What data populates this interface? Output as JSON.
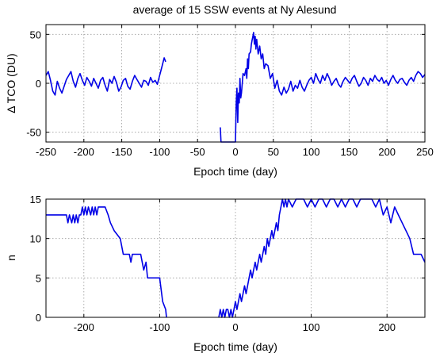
{
  "chart_data": [
    {
      "type": "line",
      "title": "average of 15 SSW events at Ny Alesund",
      "xlabel": "Epoch time (day)",
      "ylabel": "Δ TCO (DU)",
      "xlim": [
        -250,
        250
      ],
      "ylim": [
        -60,
        60
      ],
      "xticks": [
        "-250",
        "-200",
        "-150",
        "-100",
        "-50",
        "0",
        "50",
        "100",
        "150",
        "200",
        "250"
      ],
      "yticks": [
        "50",
        "0",
        "-50"
      ],
      "grid": true,
      "color": "#0000e6",
      "series": [
        {
          "segments": [
            {
              "x": [
                -250,
                -247,
                -244,
                -241,
                -238,
                -235,
                -232,
                -229,
                -226,
                -223,
                -220,
                -217,
                -214,
                -211,
                -208,
                -205,
                -202,
                -199,
                -196,
                -193,
                -190,
                -187,
                -184,
                -181,
                -178,
                -175,
                -172,
                -169,
                -166,
                -163,
                -160,
                -157,
                -154,
                -151,
                -148,
                -145,
                -142,
                -139,
                -136,
                -133,
                -130,
                -127,
                -124,
                -121,
                -118,
                -115,
                -112,
                -109,
                -106,
                -103,
                -100,
                -97,
                -94,
                -92
              ],
              "y": [
                8,
                12,
                3,
                -8,
                -12,
                2,
                -5,
                -10,
                -3,
                4,
                8,
                12,
                2,
                -4,
                5,
                10,
                3,
                -2,
                6,
                2,
                -3,
                5,
                0,
                -5,
                3,
                6,
                -2,
                -8,
                4,
                0,
                7,
                1,
                -8,
                -4,
                3,
                5,
                -3,
                -6,
                2,
                8,
                4,
                0,
                -4,
                3,
                2,
                -2,
                6,
                1,
                3,
                -1,
                8,
                17,
                26,
                22
              ]
            },
            {
              "x": [
                -20,
                -19,
                -18,
                -15,
                -12,
                -10,
                -8,
                -6,
                -4,
                -2,
                0,
                1,
                2,
                3,
                4,
                5,
                6,
                7,
                8,
                10,
                12,
                14,
                15,
                16,
                17,
                18,
                20,
                21,
                22,
                23,
                24,
                25,
                26,
                27,
                28,
                30,
                32,
                34,
                36,
                38,
                40,
                43,
                46,
                49,
                52,
                55,
                58,
                61,
                64,
                67,
                70,
                73,
                76,
                79,
                82,
                85,
                88,
                91,
                94,
                97,
                100,
                103,
                106,
                109,
                112,
                115,
                118,
                121,
                124,
                127,
                130,
                133,
                136,
                139,
                142,
                145,
                148,
                151,
                154,
                157,
                160,
                163,
                166,
                169,
                172,
                175,
                178,
                181,
                184,
                187,
                190,
                193,
                196,
                199,
                202,
                205,
                208,
                211,
                214,
                217,
                220,
                223,
                226,
                229,
                232,
                235,
                238,
                241,
                244,
                247,
                250
              ],
              "y": [
                -45,
                -60,
                -60,
                -60,
                -60,
                -60,
                -60,
                -60,
                -60,
                -60,
                -60,
                -20,
                -5,
                -40,
                -10,
                -20,
                5,
                -15,
                -10,
                10,
                8,
                15,
                5,
                25,
                15,
                30,
                32,
                40,
                44,
                48,
                52,
                40,
                48,
                35,
                45,
                30,
                38,
                25,
                30,
                15,
                20,
                18,
                5,
                10,
                -5,
                3,
                -8,
                -12,
                -4,
                -10,
                -6,
                2,
                -8,
                -2,
                -5,
                3,
                -4,
                -8,
                -2,
                3,
                6,
                0,
                10,
                4,
                0,
                8,
                3,
                10,
                5,
                -2,
                2,
                5,
                -1,
                -4,
                2,
                6,
                3,
                0,
                5,
                8,
                2,
                -3,
                0,
                6,
                3,
                -2,
                5,
                2,
                8,
                4,
                2,
                6,
                0,
                3,
                -2,
                4,
                8,
                3,
                0,
                4,
                5,
                1,
                -2,
                3,
                6,
                2,
                8,
                12,
                10,
                6,
                9
              ]
            }
          ]
        }
      ]
    },
    {
      "type": "line",
      "xlabel": "Epoch time (day)",
      "ylabel": "n",
      "xlim": [
        -250,
        250
      ],
      "ylim": [
        0,
        15
      ],
      "xticks": [
        "-200",
        "-100",
        "0",
        "100",
        "200"
      ],
      "yticks": [
        "15",
        "10",
        "5",
        "0"
      ],
      "grid": true,
      "color": "#0000e6",
      "series": [
        {
          "segments": [
            {
              "x": [
                -250,
                -223,
                -221,
                -219,
                -216,
                -214,
                -212,
                -210,
                -208,
                -206,
                -204,
                -202,
                -200,
                -198,
                -196,
                -194,
                -191,
                -189,
                -187,
                -185,
                -183,
                -181,
                -180,
                -172,
                -168,
                -165,
                -160,
                -152,
                -150,
                -148,
                -140,
                -138,
                -136,
                -134,
                -125,
                -123,
                -121,
                -118,
                -116,
                -108,
                -100,
                -96,
                -92,
                -91
              ],
              "y": [
                13,
                13,
                12,
                13,
                12,
                13,
                12,
                13,
                12,
                13,
                13,
                14,
                13,
                14,
                13,
                14,
                13,
                14,
                13,
                14,
                13,
                14,
                14,
                14,
                13,
                12,
                11,
                10,
                9,
                8,
                8,
                7,
                8,
                8,
                8,
                7,
                6,
                7,
                5,
                5,
                5,
                2,
                1,
                0
              ]
            },
            {
              "x": [
                -22,
                -20,
                -18,
                -16,
                -14,
                -12,
                -10,
                -8,
                -6,
                -4,
                -2,
                0,
                2,
                4,
                6,
                8,
                10,
                12,
                14,
                16,
                18,
                20,
                22,
                24,
                26,
                28,
                30,
                32,
                34,
                36,
                38,
                40,
                42,
                44,
                46,
                48,
                50,
                52,
                54,
                56,
                58,
                60,
                62,
                64,
                66,
                68,
                70,
                75,
                80,
                85,
                90,
                95,
                100,
                105,
                110,
                115,
                120,
                125,
                130,
                135,
                140,
                145,
                150,
                155,
                160,
                165,
                170,
                175,
                180,
                185,
                190,
                195,
                200,
                205,
                210,
                215,
                220,
                225,
                230,
                235,
                240,
                245,
                250
              ],
              "y": [
                0,
                1,
                0,
                1,
                0,
                1,
                1,
                0,
                1,
                0,
                1,
                2,
                1,
                2,
                3,
                2,
                3,
                4,
                3,
                4,
                5,
                6,
                5,
                6,
                7,
                6,
                7,
                8,
                7,
                8,
                9,
                8,
                10,
                9,
                10,
                11,
                10,
                11,
                12,
                11,
                13,
                14,
                15,
                14,
                15,
                14,
                15,
                14,
                15,
                15,
                15,
                14,
                15,
                14,
                15,
                15,
                14,
                15,
                15,
                14,
                15,
                14,
                15,
                15,
                14,
                15,
                15,
                15,
                15,
                14,
                15,
                13,
                14,
                12,
                14,
                13,
                12,
                11,
                10,
                8,
                8,
                8,
                7
              ]
            }
          ]
        }
      ]
    }
  ]
}
